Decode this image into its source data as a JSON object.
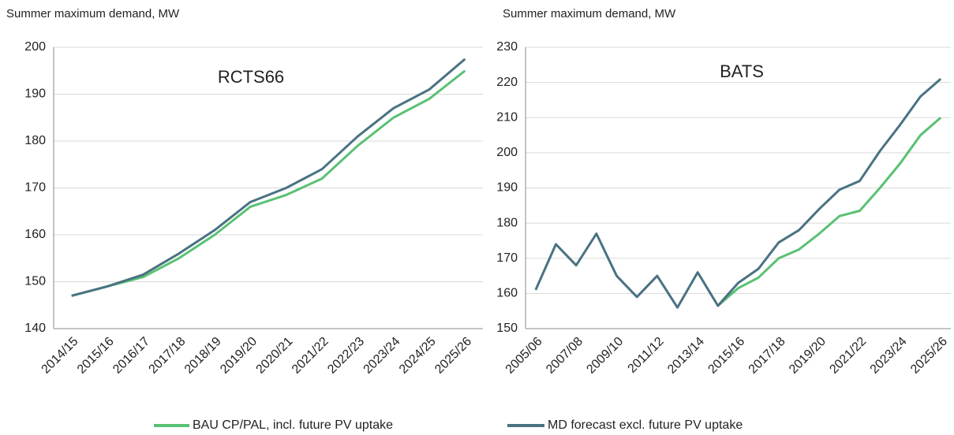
{
  "chart_data": [
    {
      "type": "line",
      "y_label": "Summer maximum demand, MW",
      "annotation": "RCTS66",
      "categories": [
        "2014/15",
        "2015/16",
        "2016/17",
        "2017/18",
        "2018/19",
        "2019/20",
        "2020/21",
        "2021/22",
        "2022/23",
        "2023/24",
        "2024/25",
        "2025/26"
      ],
      "series": [
        {
          "name": "BAU CP/PAL, incl. future PV uptake",
          "color": "#5ac173",
          "values": [
            147,
            149,
            151,
            155,
            160,
            166,
            168.5,
            172,
            179,
            185,
            189,
            195
          ]
        },
        {
          "name": "MD forecast excl. future PV uptake",
          "color": "#4a7282",
          "values": [
            147,
            149,
            151.5,
            156,
            161,
            167,
            170,
            174,
            181,
            187,
            191,
            197.5
          ]
        }
      ],
      "ylim": [
        140,
        200
      ],
      "yticks": [
        140,
        150,
        160,
        170,
        180,
        190,
        200
      ],
      "grid": true
    },
    {
      "type": "line",
      "y_label": "Summer maximum demand, MW",
      "annotation": "BATS",
      "categories": [
        "2005/06",
        null,
        "2007/08",
        null,
        "2009/10",
        null,
        "2011/12",
        null,
        "2013/14",
        null,
        "2015/16",
        null,
        "2017/18",
        null,
        "2019/20",
        null,
        "2021/22",
        null,
        "2023/24",
        null,
        "2025/26"
      ],
      "series": [
        {
          "values": [
            null,
            null,
            null,
            null,
            null,
            null,
            null,
            null,
            null,
            156.5,
            161.5,
            164.5,
            170,
            172.5,
            177,
            182,
            183.5,
            190,
            197,
            205,
            210
          ]
        },
        {
          "values": [
            161,
            174,
            168,
            177,
            165,
            159,
            165,
            156,
            166,
            156.5,
            163,
            167,
            174.5,
            178,
            184,
            189.5,
            192,
            200.5,
            208,
            216,
            221
          ]
        }
      ],
      "ylim": [
        150,
        230
      ],
      "yticks": [
        150,
        160,
        170,
        180,
        190,
        200,
        210,
        220,
        230
      ],
      "grid": true
    }
  ]
}
